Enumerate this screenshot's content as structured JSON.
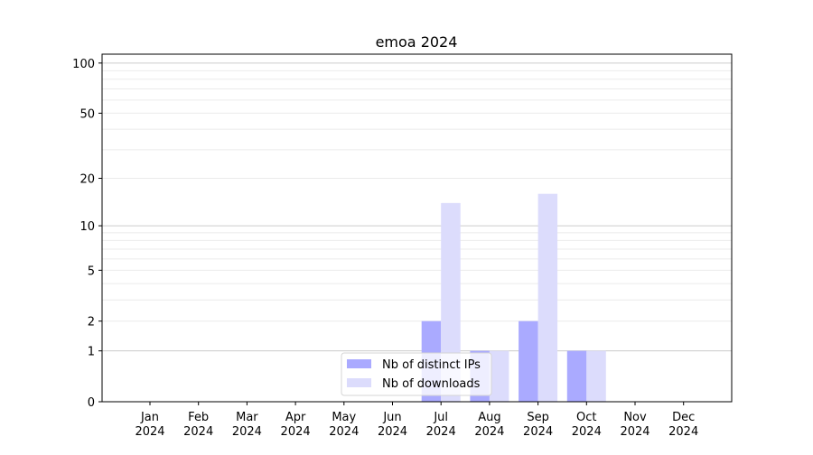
{
  "chart_data": {
    "type": "bar",
    "title": "emoa 2024",
    "xlabel": "",
    "ylabel": "",
    "yscale": "log(y+1)",
    "ylim": [
      0,
      113
    ],
    "yticks": [
      0,
      1,
      2,
      5,
      10,
      20,
      50,
      100
    ],
    "grid": true,
    "legend_position": "lower-center",
    "categories": [
      "Jan\n2024",
      "Feb\n2024",
      "Mar\n2024",
      "Apr\n2024",
      "May\n2024",
      "Jun\n2024",
      "Jul\n2024",
      "Aug\n2024",
      "Sep\n2024",
      "Oct\n2024",
      "Nov\n2024",
      "Dec\n2024"
    ],
    "series": [
      {
        "name": "Nb of distinct IPs",
        "color": "#aaaaff",
        "values": [
          0,
          0,
          0,
          0,
          0,
          0,
          2,
          1,
          2,
          1,
          0,
          0
        ]
      },
      {
        "name": "Nb of downloads",
        "color": "#dcdcfc",
        "values": [
          0,
          0,
          0,
          0,
          0,
          0,
          14,
          1,
          16,
          1,
          0,
          0
        ]
      }
    ]
  }
}
